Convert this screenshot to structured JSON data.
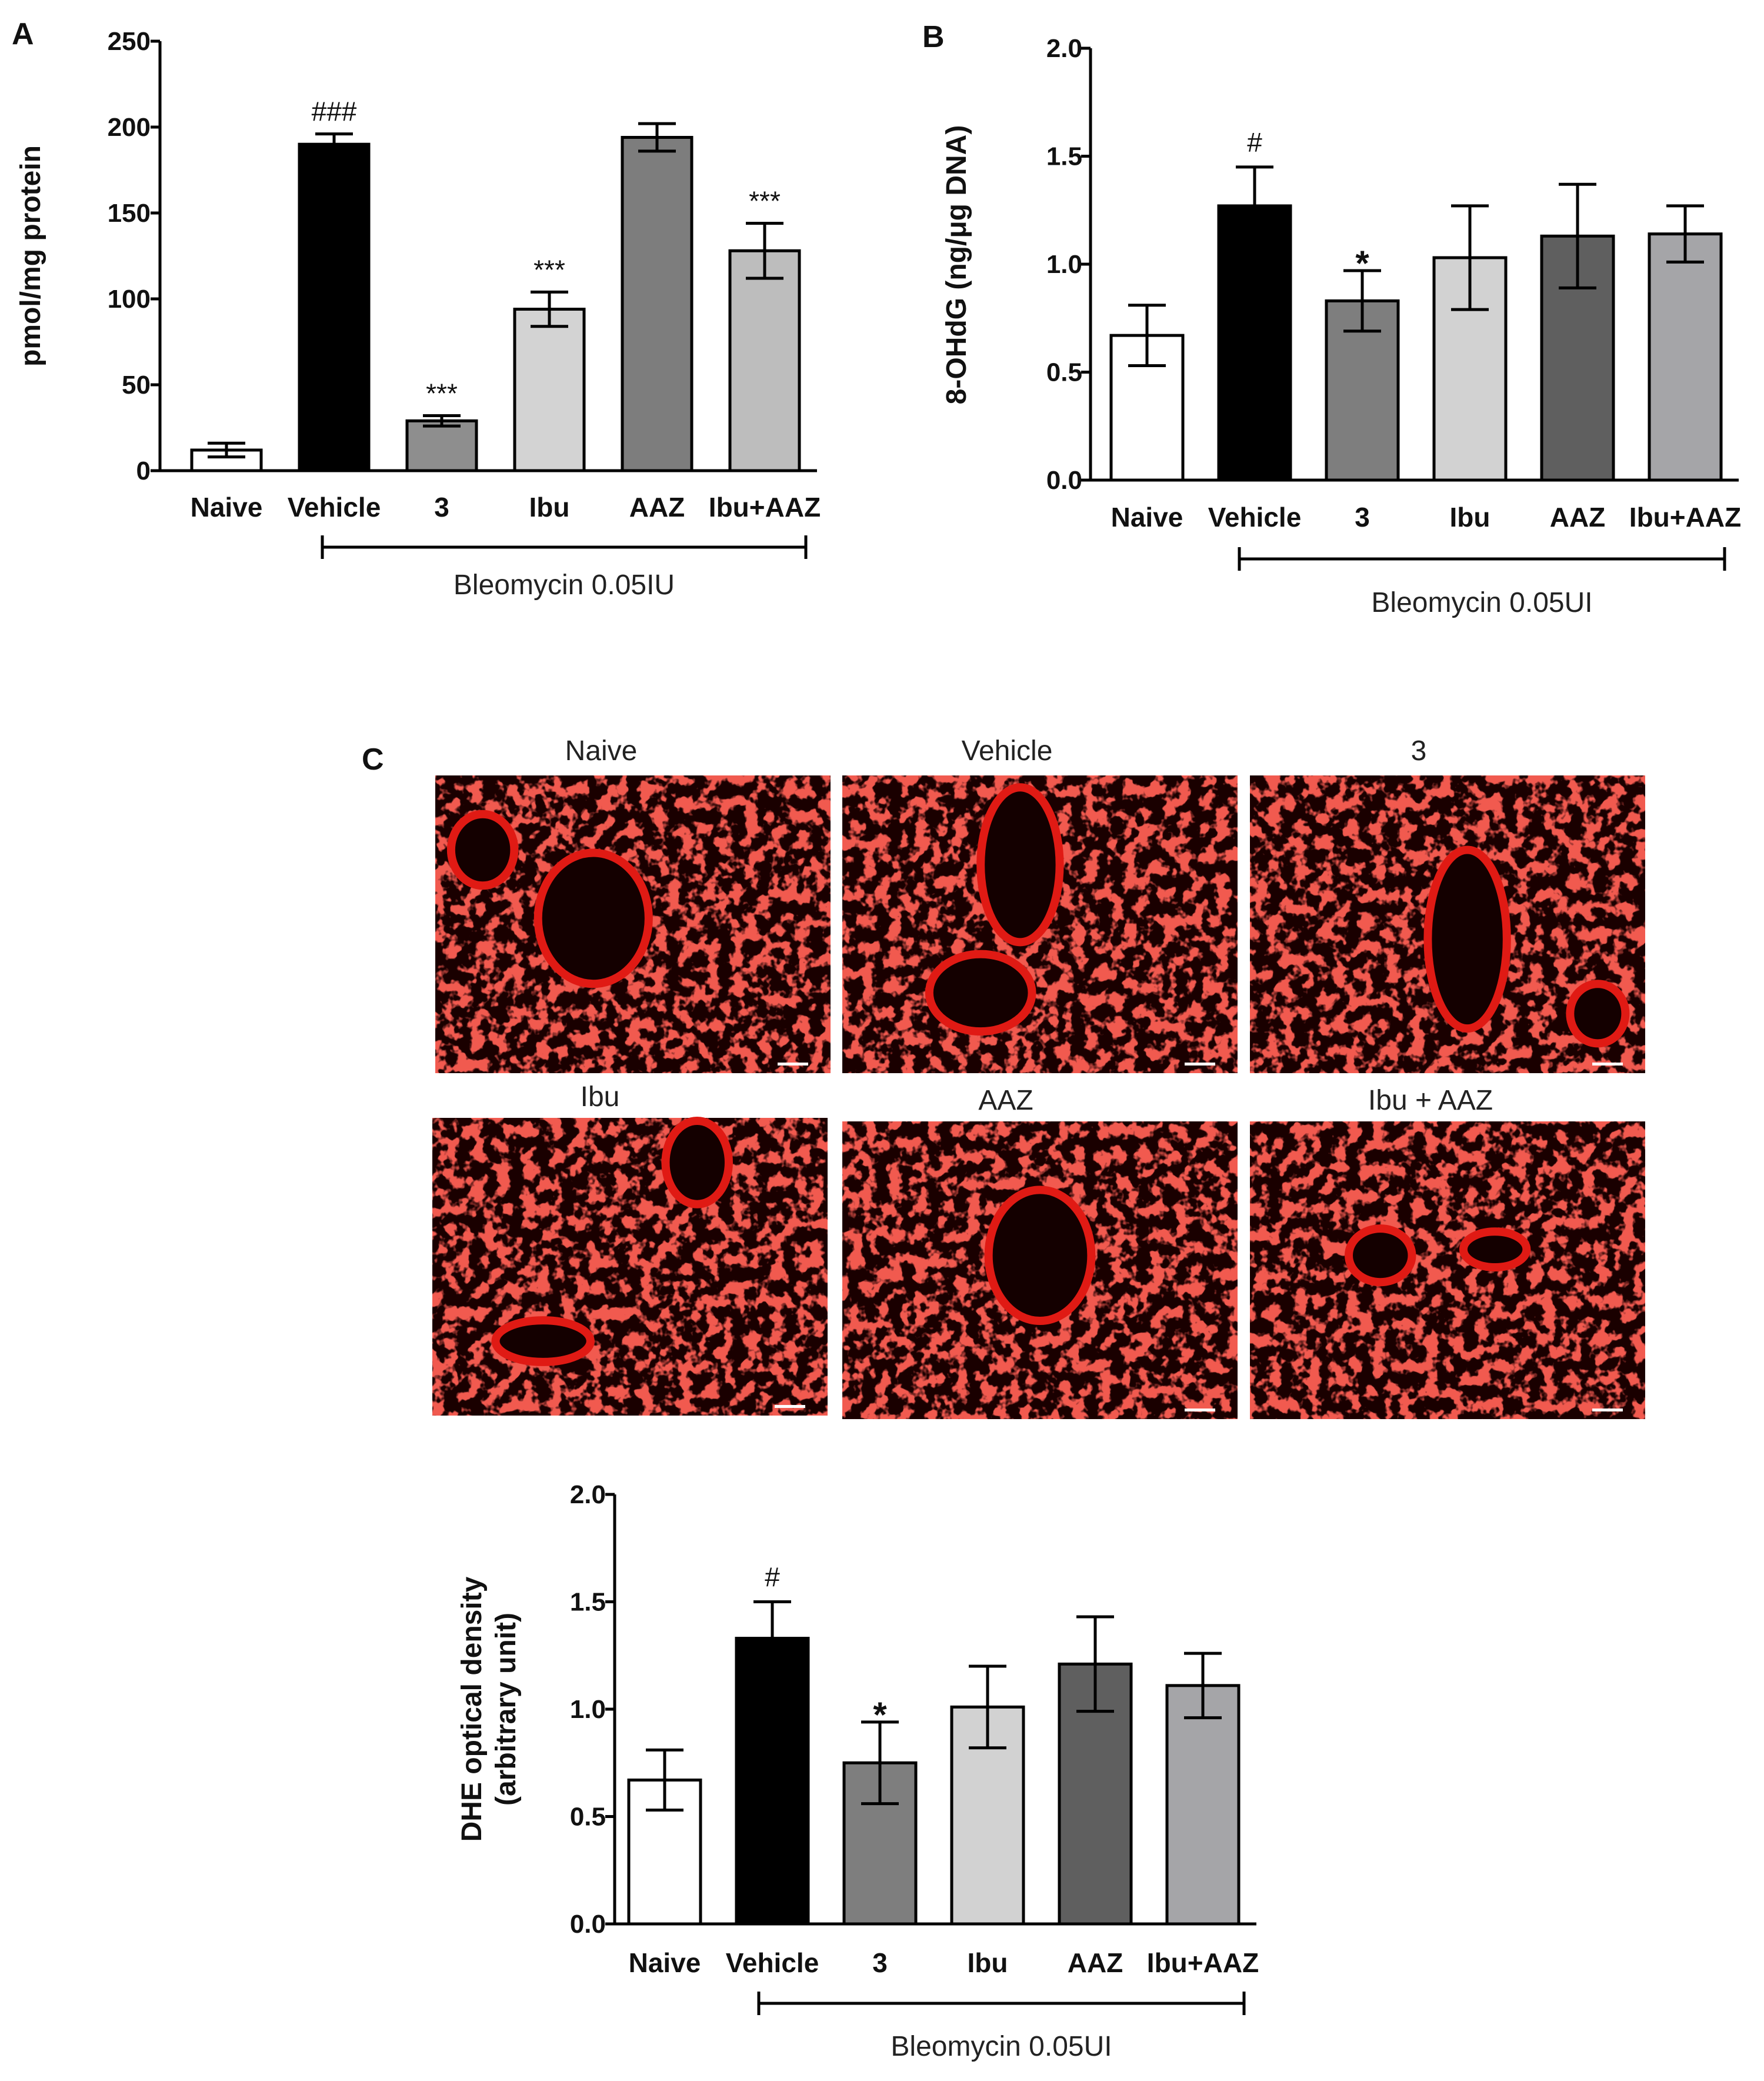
{
  "figure": {
    "micrographs": {
      "titles": [
        "Naive",
        "Vehicle",
        "3",
        "Ibu",
        "AAZ",
        "Ibu + AAZ"
      ],
      "tissue_color": "#e01a14",
      "background_color": "#1a0000",
      "scale_bar_color": "#ffffff"
    }
  },
  "chart_data": [
    {
      "panel": "A",
      "type": "bar",
      "categories": [
        "Naive",
        "Vehicle",
        "3",
        "Ibu",
        "AAZ",
        "Ibu+AAZ"
      ],
      "values": [
        12,
        190,
        29,
        94,
        194,
        128
      ],
      "errors": [
        4,
        6,
        3,
        10,
        8,
        16
      ],
      "bar_colors": [
        "#ffffff",
        "#000000",
        "#8e8e8e",
        "#d3d3d3",
        "#7d7d7d",
        "#bdbdbd"
      ],
      "significance": [
        "",
        "###",
        "***",
        "***",
        "",
        "***"
      ],
      "ylabel": "pmol/mg protein",
      "xlabel": "",
      "ylim": [
        0,
        250
      ],
      "yticks": [
        "0",
        "50",
        "100",
        "150",
        "200",
        "250"
      ],
      "bracket_label": "Bleomycin 0.05IU",
      "bracket_span": [
        1,
        5
      ]
    },
    {
      "panel": "B",
      "type": "bar",
      "categories": [
        "Naive",
        "Vehicle",
        "3",
        "Ibu",
        "AAZ",
        "Ibu+AAZ"
      ],
      "values": [
        0.67,
        1.27,
        0.83,
        1.03,
        1.13,
        1.14
      ],
      "errors": [
        0.14,
        0.18,
        0.14,
        0.24,
        0.24,
        0.13
      ],
      "bar_colors": [
        "#ffffff",
        "#000000",
        "#7e7e7e",
        "#d2d2d2",
        "#5f5f5f",
        "#a5a5a8"
      ],
      "significance": [
        "",
        "#",
        "*",
        "",
        "",
        ""
      ],
      "ylabel": "8-OHdG (ng/μg DNA)",
      "xlabel": "",
      "ylim": [
        0,
        2.0
      ],
      "yticks": [
        "0.0",
        "0.5",
        "1.0",
        "1.5",
        "2.0"
      ],
      "bracket_label": "Bleomycin 0.05UI",
      "bracket_span": [
        1,
        5
      ]
    },
    {
      "panel": "C",
      "type": "bar",
      "categories": [
        "Naive",
        "Vehicle",
        "3",
        "Ibu",
        "AAZ",
        "Ibu+AAZ"
      ],
      "values": [
        0.67,
        1.33,
        0.75,
        1.01,
        1.21,
        1.11
      ],
      "errors": [
        0.14,
        0.17,
        0.19,
        0.19,
        0.22,
        0.15
      ],
      "bar_colors": [
        "#ffffff",
        "#000000",
        "#7e7e7e",
        "#d2d2d2",
        "#5f5f5f",
        "#a5a5a8"
      ],
      "significance": [
        "",
        "#",
        "*",
        "",
        "",
        ""
      ],
      "ylabel": "DHE optical density",
      "ylabel2": "(arbitrary unit)",
      "xlabel": "",
      "ylim": [
        0,
        2.0
      ],
      "yticks": [
        "0.0",
        "0.5",
        "1.0",
        "1.5",
        "2.0"
      ],
      "bracket_label": "Bleomycin 0.05UI",
      "bracket_span": [
        1,
        5
      ]
    }
  ]
}
